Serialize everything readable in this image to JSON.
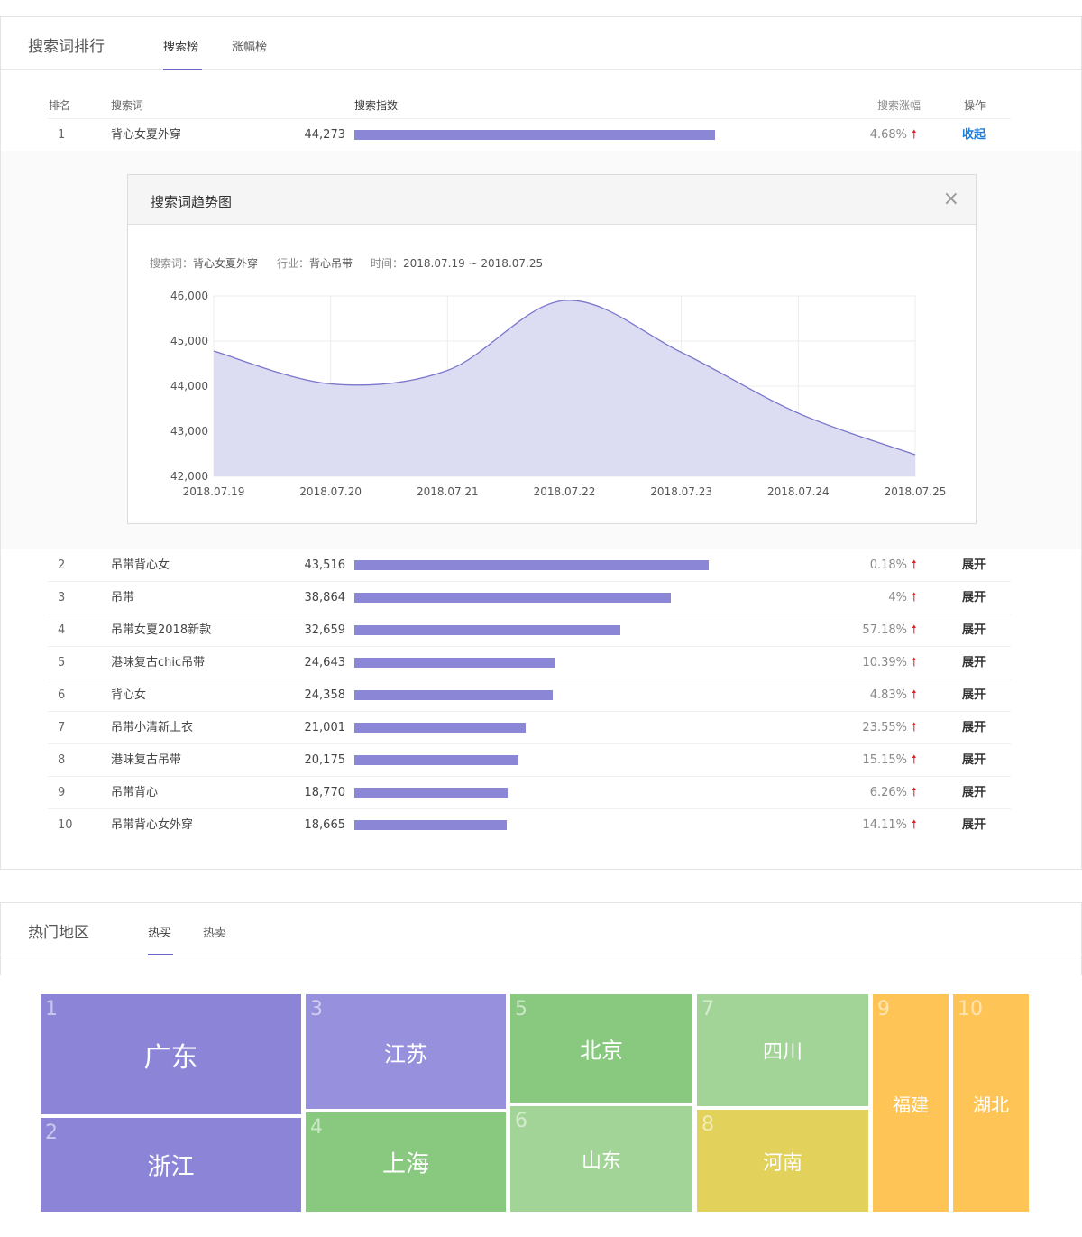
{
  "search_panel": {
    "title": "搜索词排行",
    "tabs": [
      {
        "label": "搜索榜"
      },
      {
        "label": "涨幅榜"
      }
    ],
    "headers": {
      "rank": "排名",
      "keyword": "搜索词",
      "index": "搜索指数",
      "growth": "搜索涨幅",
      "action": "操作"
    },
    "rows": [
      {
        "rank": "1",
        "keyword": "背心女夏外穿",
        "value": "44,273",
        "bar": 44273,
        "growth": "4.68%",
        "action": "收起"
      },
      {
        "rank": "2",
        "keyword": "吊带背心女",
        "value": "43,516",
        "bar": 43516,
        "growth": "0.18%",
        "action": "展开"
      },
      {
        "rank": "3",
        "keyword": "吊带",
        "value": "38,864",
        "bar": 38864,
        "growth": "4%",
        "action": "展开"
      },
      {
        "rank": "4",
        "keyword": "吊带女夏2018新款",
        "value": "32,659",
        "bar": 32659,
        "growth": "57.18%",
        "action": "展开"
      },
      {
        "rank": "5",
        "keyword": "港味复古chic吊带",
        "value": "24,643",
        "bar": 24643,
        "growth": "10.39%",
        "action": "展开"
      },
      {
        "rank": "6",
        "keyword": "背心女",
        "value": "24,358",
        "bar": 24358,
        "growth": "4.83%",
        "action": "展开"
      },
      {
        "rank": "7",
        "keyword": "吊带小清新上衣",
        "value": "21,001",
        "bar": 21001,
        "growth": "23.55%",
        "action": "展开"
      },
      {
        "rank": "8",
        "keyword": "港味复古吊带",
        "value": "20,175",
        "bar": 20175,
        "growth": "15.15%",
        "action": "展开"
      },
      {
        "rank": "9",
        "keyword": "吊带背心",
        "value": "18,770",
        "bar": 18770,
        "growth": "6.26%",
        "action": "展开"
      },
      {
        "rank": "10",
        "keyword": "吊带背心女外穿",
        "value": "18,665",
        "bar": 18665,
        "growth": "14.11%",
        "action": "展开"
      }
    ],
    "bar_max": 44273,
    "up_arrow": "🠕",
    "accent": "#8b87d6"
  },
  "trend_modal": {
    "title": "搜索词趋势图",
    "close": "×",
    "meta": {
      "keyword_label": "搜索词：",
      "keyword": "背心女夏外穿",
      "industry_label": "行业：",
      "industry": "背心吊带",
      "time_label": "时间：",
      "time": "2018.07.19 ~ 2018.07.25"
    }
  },
  "chart_data": {
    "type": "area",
    "title": "",
    "xlabel": "",
    "ylabel": "",
    "x": [
      "2018.07.19",
      "2018.07.20",
      "2018.07.21",
      "2018.07.22",
      "2018.07.23",
      "2018.07.24",
      "2018.07.25"
    ],
    "yticks": [
      "42,000",
      "43,000",
      "44,000",
      "45,000",
      "46,000"
    ],
    "ylim": [
      42000,
      46000
    ],
    "series": [
      {
        "values": [
          44780,
          44050,
          44350,
          45900,
          44750,
          43400,
          42480
        ]
      }
    ],
    "grid": true,
    "line_color": "#7b77cc",
    "fill_color": "#dcdcf2"
  },
  "region_panel": {
    "title": "热门地区",
    "tabs": [
      {
        "label": "热买"
      },
      {
        "label": "热卖"
      }
    ],
    "tiles": [
      {
        "num": "1",
        "name": "广东",
        "color": "#8b84d7"
      },
      {
        "num": "2",
        "name": "浙江",
        "color": "#8b84d7"
      },
      {
        "num": "3",
        "name": "江苏",
        "color": "#9690dd"
      },
      {
        "num": "4",
        "name": "上海",
        "color": "#88c97f"
      },
      {
        "num": "5",
        "name": "北京",
        "color": "#88c97f"
      },
      {
        "num": "6",
        "name": "山东",
        "color": "#a2d497"
      },
      {
        "num": "7",
        "name": "四川",
        "color": "#a2d497"
      },
      {
        "num": "8",
        "name": "河南",
        "color": "#e2d25c"
      },
      {
        "num": "9",
        "name": "福建",
        "color": "#fec455"
      },
      {
        "num": "10",
        "name": "湖北",
        "color": "#fec455"
      }
    ]
  }
}
